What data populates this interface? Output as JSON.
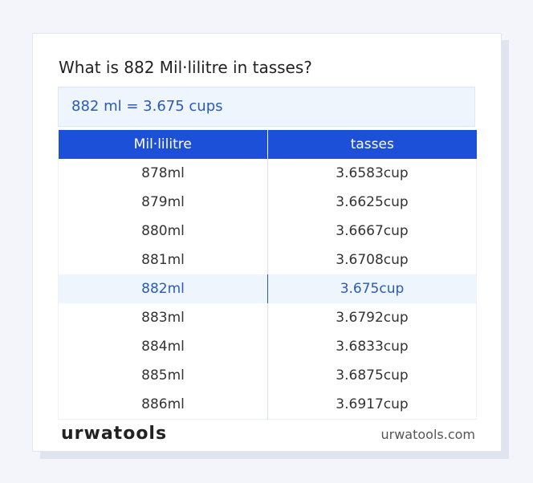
{
  "title": "What is 882 Mil·lilitre in tasses?",
  "result": "882 ml = 3.675 cups",
  "table": {
    "headers": [
      "Mil·lilitre",
      "tasses"
    ],
    "rows": [
      [
        "878ml",
        "3.6583cup"
      ],
      [
        "879ml",
        "3.6625cup"
      ],
      [
        "880ml",
        "3.6667cup"
      ],
      [
        "881ml",
        "3.6708cup"
      ],
      [
        "882ml",
        "3.675cup"
      ],
      [
        "883ml",
        "3.6792cup"
      ],
      [
        "884ml",
        "3.6833cup"
      ],
      [
        "885ml",
        "3.6875cup"
      ],
      [
        "886ml",
        "3.6917cup"
      ]
    ]
  },
  "footer": {
    "logo": "urwatools",
    "domain": "urwatools.com"
  }
}
